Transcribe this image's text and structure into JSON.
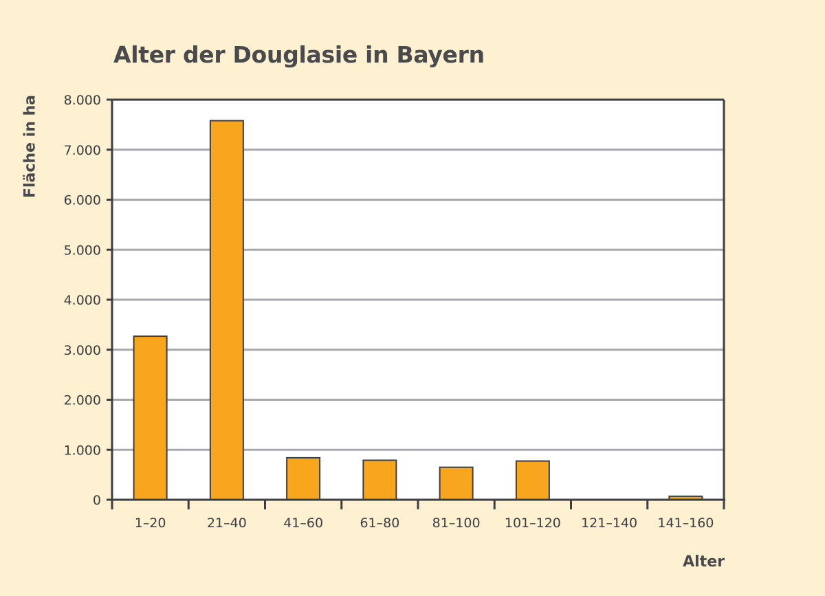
{
  "chart_data": {
    "type": "bar",
    "title": "Alter der Douglasie in Bayern",
    "xlabel": "Alter",
    "ylabel": "Fläche in ha",
    "categories": [
      "1–20",
      "21–40",
      "41–60",
      "61–80",
      "81–100",
      "101–120",
      "121–140",
      "141–160"
    ],
    "values": [
      3270,
      7580,
      840,
      790,
      650,
      775,
      0,
      70
    ],
    "ylim": [
      0,
      8000
    ],
    "yticks": [
      0,
      1000,
      2000,
      3000,
      4000,
      5000,
      6000,
      7000,
      8000
    ],
    "ytick_labels": [
      "0",
      "1.000",
      "2.000",
      "3.000",
      "4.000",
      "5.000",
      "6.000",
      "7.000",
      "8.000"
    ],
    "grid": true,
    "colors": {
      "bar": "#f9a61f",
      "bar_edge": "#3e3e42",
      "grid": "#a8a8ac",
      "axis": "#3e3e42",
      "plot_bg": "#ffffff",
      "page_bg": "#fef1d2"
    }
  }
}
